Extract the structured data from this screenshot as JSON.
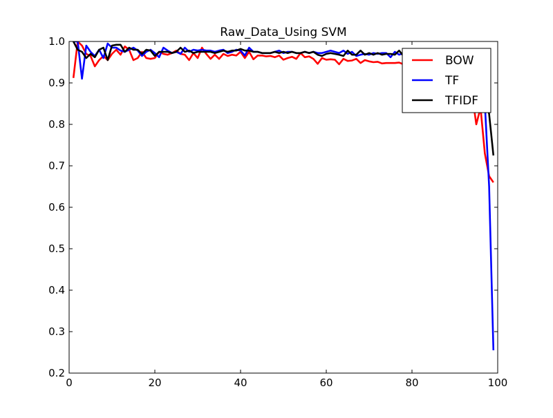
{
  "chart_data": {
    "type": "line",
    "title": "Raw_Data_Using SVM",
    "xlabel": "",
    "ylabel": "",
    "xlim": [
      0,
      100
    ],
    "ylim": [
      0.2,
      1.0
    ],
    "xticks": [
      0,
      20,
      40,
      60,
      80,
      100
    ],
    "xtick_labels": [
      "0",
      "20",
      "40",
      "60",
      "80",
      "100"
    ],
    "yticks": [
      0.2,
      0.3,
      0.4,
      0.5,
      0.6,
      0.7,
      0.8,
      0.9,
      1.0
    ],
    "ytick_labels": [
      "0.2",
      "0.3",
      "0.4",
      "0.5",
      "0.6",
      "0.7",
      "0.8",
      "0.9",
      "1.0"
    ],
    "grid": false,
    "legend_position": "top-right",
    "x": [
      1,
      2,
      3,
      4,
      5,
      6,
      7,
      8,
      9,
      10,
      11,
      12,
      13,
      14,
      15,
      16,
      17,
      18,
      19,
      20,
      21,
      22,
      23,
      24,
      25,
      26,
      27,
      28,
      29,
      30,
      31,
      32,
      33,
      34,
      35,
      36,
      37,
      38,
      39,
      40,
      41,
      42,
      43,
      44,
      45,
      46,
      47,
      48,
      49,
      50,
      51,
      52,
      53,
      54,
      55,
      56,
      57,
      58,
      59,
      60,
      61,
      62,
      63,
      64,
      65,
      66,
      67,
      68,
      69,
      70,
      71,
      72,
      73,
      74,
      75,
      76,
      77,
      78,
      79,
      80,
      81,
      82,
      83,
      84,
      85,
      86,
      87,
      88,
      89,
      90,
      91,
      92,
      93,
      94,
      95,
      96,
      97,
      98,
      99
    ],
    "series": [
      {
        "name": "BOW",
        "color": "#ff0000",
        "values": [
          0.912,
          1.0,
          0.99,
          0.97,
          0.965,
          0.94,
          0.955,
          0.965,
          0.955,
          0.97,
          0.98,
          0.968,
          0.988,
          0.98,
          0.955,
          0.96,
          0.975,
          0.96,
          0.958,
          0.96,
          0.975,
          0.97,
          0.968,
          0.972,
          0.978,
          0.97,
          0.968,
          0.955,
          0.972,
          0.96,
          0.985,
          0.97,
          0.958,
          0.968,
          0.958,
          0.97,
          0.965,
          0.968,
          0.966,
          0.975,
          0.96,
          0.975,
          0.957,
          0.966,
          0.966,
          0.964,
          0.965,
          0.962,
          0.966,
          0.956,
          0.96,
          0.963,
          0.958,
          0.972,
          0.962,
          0.964,
          0.958,
          0.946,
          0.96,
          0.956,
          0.957,
          0.956,
          0.945,
          0.958,
          0.953,
          0.954,
          0.958,
          0.948,
          0.955,
          0.952,
          0.95,
          0.951,
          0.947,
          0.948,
          0.948,
          0.948,
          0.949,
          0.945,
          0.94,
          0.932,
          0.925,
          0.94,
          0.93,
          0.937,
          0.935,
          0.928,
          0.935,
          0.933,
          0.92,
          0.915,
          0.915,
          0.9,
          0.885,
          0.875,
          0.8,
          0.84,
          0.73,
          0.675,
          0.66
        ]
      },
      {
        "name": "TF",
        "color": "#0000ff",
        "values": [
          1.0,
          1.0,
          0.91,
          0.99,
          0.975,
          0.965,
          0.98,
          0.96,
          0.995,
          0.985,
          0.985,
          0.978,
          0.975,
          0.98,
          0.985,
          0.978,
          0.965,
          0.975,
          0.98,
          0.972,
          0.962,
          0.985,
          0.978,
          0.972,
          0.975,
          0.97,
          0.985,
          0.975,
          0.98,
          0.978,
          0.98,
          0.978,
          0.978,
          0.975,
          0.978,
          0.98,
          0.972,
          0.975,
          0.98,
          0.978,
          0.966,
          0.985,
          0.975,
          0.975,
          0.972,
          0.972,
          0.972,
          0.975,
          0.978,
          0.972,
          0.975,
          0.975,
          0.972,
          0.972,
          0.975,
          0.972,
          0.975,
          0.972,
          0.972,
          0.975,
          0.978,
          0.975,
          0.972,
          0.978,
          0.97,
          0.975,
          0.965,
          0.968,
          0.97,
          0.968,
          0.972,
          0.97,
          0.972,
          0.972,
          0.962,
          0.975,
          0.968,
          0.972,
          0.97,
          0.968,
          0.968,
          0.965,
          0.962,
          0.965,
          0.96,
          0.958,
          0.96,
          0.955,
          0.958,
          0.955,
          0.955,
          0.95,
          0.94,
          0.93,
          0.88,
          0.87,
          0.85,
          0.65,
          0.255
        ]
      },
      {
        "name": "TFIDF",
        "color": "#000000",
        "values": [
          1.0,
          0.98,
          0.975,
          0.96,
          0.97,
          0.962,
          0.98,
          0.985,
          0.955,
          0.99,
          0.992,
          0.992,
          0.975,
          0.985,
          0.98,
          0.98,
          0.97,
          0.98,
          0.978,
          0.965,
          0.975,
          0.975,
          0.975,
          0.972,
          0.975,
          0.985,
          0.975,
          0.978,
          0.972,
          0.975,
          0.975,
          0.975,
          0.975,
          0.972,
          0.975,
          0.978,
          0.975,
          0.978,
          0.978,
          0.982,
          0.978,
          0.978,
          0.975,
          0.975,
          0.972,
          0.972,
          0.972,
          0.975,
          0.972,
          0.975,
          0.972,
          0.975,
          0.972,
          0.972,
          0.975,
          0.972,
          0.975,
          0.968,
          0.965,
          0.97,
          0.972,
          0.97,
          0.968,
          0.965,
          0.978,
          0.968,
          0.968,
          0.978,
          0.968,
          0.972,
          0.968,
          0.972,
          0.968,
          0.97,
          0.97,
          0.968,
          0.978,
          0.965,
          0.968,
          0.965,
          0.962,
          0.96,
          0.962,
          0.96,
          0.958,
          0.955,
          0.955,
          0.95,
          0.948,
          0.945,
          0.94,
          0.935,
          0.925,
          0.915,
          0.9,
          0.885,
          0.87,
          0.825,
          0.725
        ]
      }
    ]
  }
}
